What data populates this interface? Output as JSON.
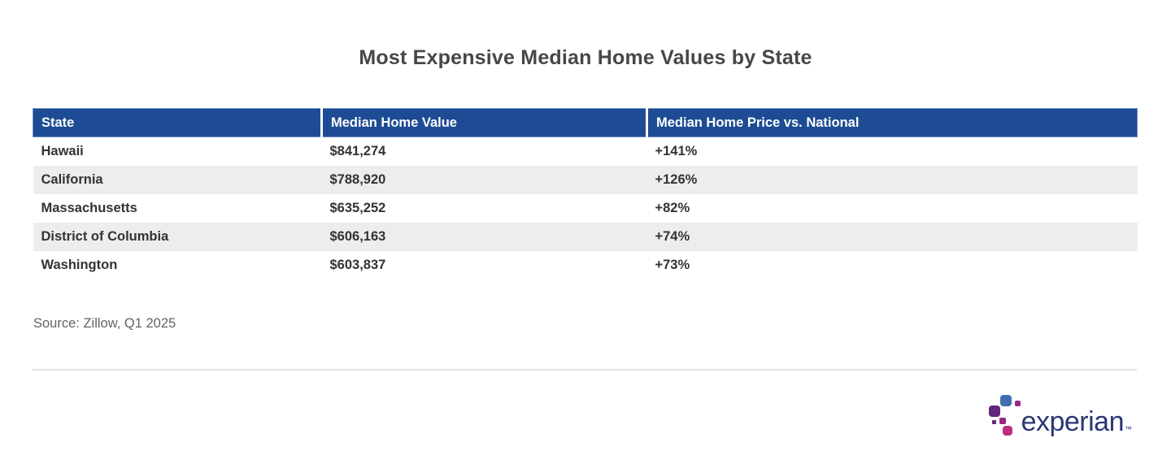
{
  "title": "Most Expensive Median Home Values by State",
  "table": {
    "columns": [
      "State",
      "Median Home Value",
      "Median Home Price vs. National"
    ],
    "rows": [
      [
        "Hawaii",
        "$841,274",
        "+141%"
      ],
      [
        "California",
        "$788,920",
        "+126%"
      ],
      [
        "Massachusetts",
        "$635,252",
        "+82%"
      ],
      [
        "District of Columbia",
        "$606,163",
        "+74%"
      ],
      [
        "Washington",
        "$603,837",
        "+73%"
      ]
    ]
  },
  "chart_data": {
    "type": "table",
    "title": "Most Expensive Median Home Values by State",
    "columns": [
      "State",
      "Median Home Value",
      "Median Home Price vs. National"
    ],
    "categories": [
      "Hawaii",
      "California",
      "Massachusetts",
      "District of Columbia",
      "Washington"
    ],
    "series": [
      {
        "name": "Median Home Value (USD)",
        "values": [
          841274,
          788920,
          635252,
          606163,
          603837
        ]
      },
      {
        "name": "Median Home Price vs. National (%)",
        "values": [
          141,
          126,
          82,
          74,
          73
        ]
      }
    ],
    "source": "Zillow, Q1 2025",
    "layout_hints": {
      "striped_rows": true,
      "header_bg": "#1e4c94"
    }
  },
  "source": "Source: Zillow, Q1 2025",
  "logo": {
    "text": "experian",
    "trademark": "™"
  },
  "colors": {
    "header_bg": "#1e4c94",
    "row_alt_bg": "#ededed",
    "title_text": "#474747",
    "cell_text": "#333333",
    "source_text": "#636363",
    "divider": "#e3e3e3",
    "logo_text": "#2b3674",
    "logo_blue": "#406eb3",
    "logo_purple": "#632678",
    "logo_magenta": "#982881",
    "logo_pink": "#ba2f7d"
  }
}
